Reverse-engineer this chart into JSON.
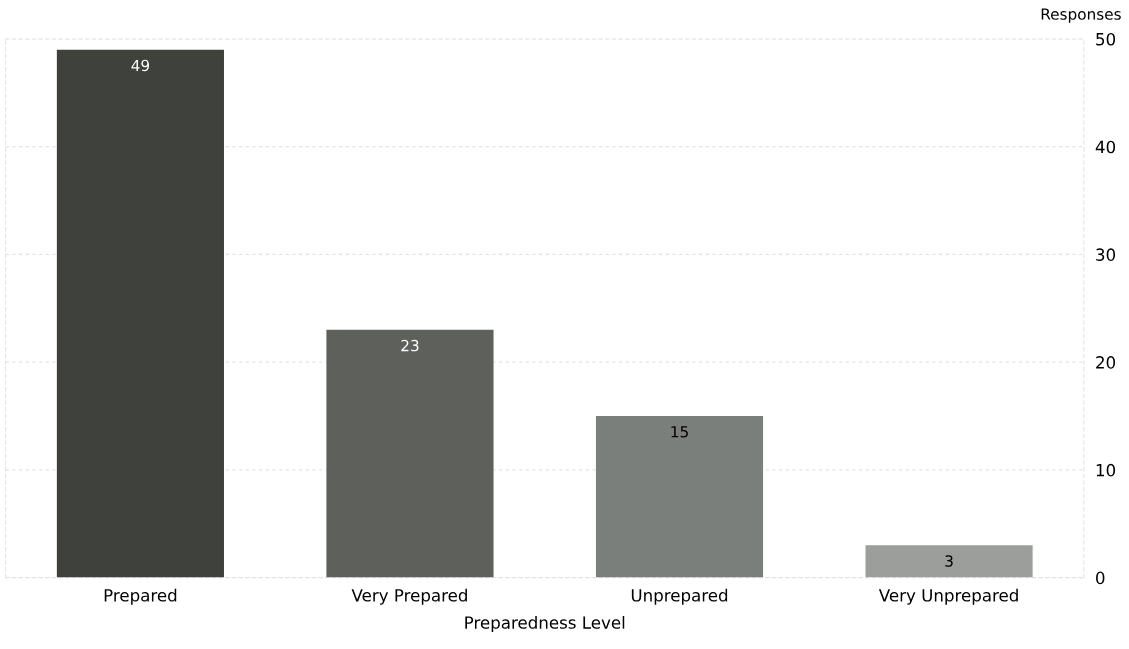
{
  "chart_data": {
    "type": "bar",
    "xlabel": "Preparedness Level",
    "ylabel": "Responses",
    "categories": [
      "Prepared",
      "Very Prepared",
      "Unprepared",
      "Very Unprepared"
    ],
    "values": [
      49,
      23,
      15,
      3
    ],
    "colors": [
      "#3f413d",
      "#5e605c",
      "#7b7f7b",
      "#9c9e9b"
    ],
    "ylim": [
      0,
      50
    ],
    "yticks": [
      0,
      10,
      20,
      30,
      40,
      50
    ],
    "grid": "y",
    "data_labels": true,
    "legend": false
  }
}
